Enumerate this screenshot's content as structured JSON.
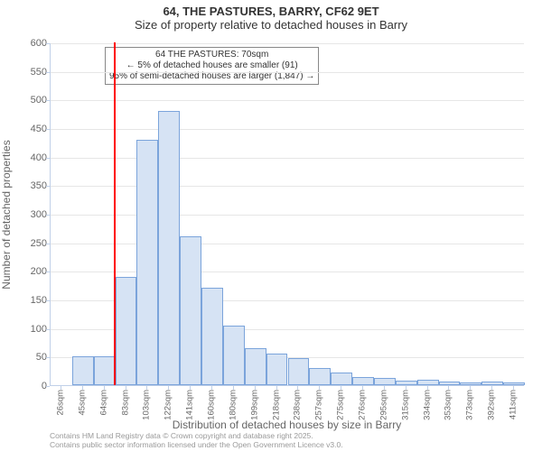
{
  "title": "64, THE PASTURES, BARRY, CF62 9ET",
  "subtitle": "Size of property relative to detached houses in Barry",
  "y_axis_title": "Number of detached properties",
  "x_axis_title": "Distribution of detached houses by size in Barry",
  "annotation": {
    "line1": "64 THE PASTURES: 70sqm",
    "line2": "← 5% of detached houses are smaller (91)",
    "line3": "95% of semi-detached houses are larger (1,847) →"
  },
  "credits_line1": "Contains HM Land Registry data © Crown copyright and database right 2025.",
  "credits_line2": "Contains public sector information licensed under the Open Government Licence v3.0.",
  "chart": {
    "type": "histogram",
    "background_color": "#ffffff",
    "grid_color": "#e6e6e6",
    "axis_line_color": "#c0d0e8",
    "bar_fill": "#d6e3f4",
    "bar_border": "#7ba4db",
    "marker_line_color": "#ff0000",
    "marker_x_value": 70,
    "x_min": 16,
    "x_max": 421,
    "bin_width": 19,
    "y_min": 0,
    "y_max": 600,
    "y_tick_step": 50,
    "y_ticks": [
      0,
      50,
      100,
      150,
      200,
      250,
      300,
      350,
      400,
      450,
      500,
      550,
      600
    ],
    "categories": [
      "26sqm",
      "45sqm",
      "64sqm",
      "83sqm",
      "103sqm",
      "122sqm",
      "141sqm",
      "160sqm",
      "180sqm",
      "199sqm",
      "218sqm",
      "238sqm",
      "257sqm",
      "275sqm",
      "276sqm",
      "295sqm",
      "315sqm",
      "334sqm",
      "353sqm",
      "373sqm",
      "392sqm",
      "411sqm"
    ],
    "values": [
      0,
      50,
      50,
      190,
      430,
      480,
      260,
      170,
      105,
      65,
      55,
      48,
      30,
      22,
      15,
      12,
      8,
      10,
      6,
      5,
      6,
      4
    ],
    "title_fontsize": 13,
    "label_fontsize": 12,
    "tick_fontsize": 11
  }
}
